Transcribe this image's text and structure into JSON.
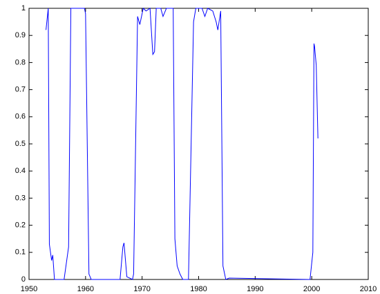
{
  "chart_data": {
    "type": "line",
    "x": [
      1953.0,
      1953.4,
      1953.6,
      1954.0,
      1954.2,
      1954.5,
      1956.2,
      1957.0,
      1957.4,
      1959.8,
      1960.0,
      1960.6,
      1961.0,
      1966.1,
      1966.6,
      1966.8,
      1967.3,
      1968.3,
      1968.5,
      1969.2,
      1969.6,
      1970.2,
      1970.7,
      1971.4,
      1971.9,
      1972.2,
      1972.5,
      1973.3,
      1973.7,
      1974.3,
      1975.5,
      1975.8,
      1976.2,
      1976.7,
      1977.2,
      1978.2,
      1979.1,
      1979.5,
      1980.6,
      1981.1,
      1981.6,
      1982.5,
      1983.1,
      1983.4,
      1983.9,
      1984.3,
      1984.8,
      1985.4,
      1999.7,
      2000.2,
      2000.4,
      2000.5,
      2000.8,
      2001.1
    ],
    "series": [
      {
        "color": "#0000ff",
        "values": [
          0.92,
          1.0,
          0.13,
          0.07,
          0.09,
          0.0,
          0.0,
          0.12,
          1.0,
          1.0,
          0.98,
          0.02,
          0.0,
          0.0,
          0.12,
          0.135,
          0.01,
          0.0,
          0.02,
          0.97,
          0.94,
          1.0,
          0.99,
          1.0,
          0.83,
          0.84,
          1.0,
          1.0,
          0.97,
          1.0,
          1.0,
          0.15,
          0.05,
          0.02,
          0.0,
          0.0,
          0.95,
          1.0,
          1.0,
          0.97,
          1.0,
          0.99,
          0.95,
          0.92,
          0.99,
          0.05,
          0.0,
          0.005,
          0.0,
          0.1,
          0.87,
          0.86,
          0.79,
          0.52
        ]
      }
    ],
    "xlim": [
      1950,
      2010
    ],
    "xticks": [
      1950,
      1960,
      1970,
      1980,
      1990,
      2000,
      2010
    ],
    "ylim": [
      0,
      1
    ],
    "yticks": [
      0,
      0.1,
      0.2,
      0.3,
      0.4,
      0.5,
      0.6,
      0.7,
      0.8,
      0.9,
      1
    ],
    "grid": false
  }
}
